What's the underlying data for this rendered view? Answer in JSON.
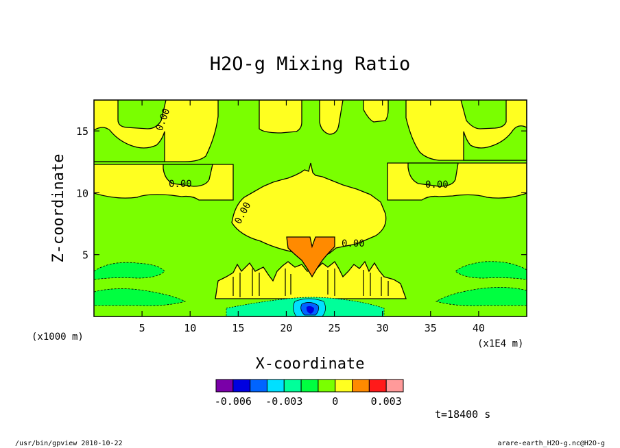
{
  "chart_data": {
    "type": "heatmap",
    "title": "H2O-g Mixing Ratio",
    "xlabel": "X-coordinate",
    "ylabel": "Z-coordinate",
    "x_unit": "(x1E4 m)",
    "z_unit": "(x1000 m)",
    "xlim": [
      0,
      45
    ],
    "ylim": [
      0,
      17.5
    ],
    "x_ticks": [
      5,
      10,
      15,
      20,
      25,
      30,
      35,
      40
    ],
    "y_ticks": [
      5,
      10,
      15
    ],
    "contour_labels": [
      "0.00",
      "0.00",
      "0.00",
      "0.00",
      "0.00"
    ],
    "colorbar": {
      "colors": [
        "#7a00a8",
        "#0000e0",
        "#0064ff",
        "#00e0ff",
        "#00ff9a",
        "#00ff40",
        "#7aff00",
        "#ffff20",
        "#ff8a00",
        "#ff1a1a",
        "#ff9a9a"
      ],
      "tick_labels": [
        "-0.006",
        "-0.003",
        "0",
        "0.003"
      ],
      "tick_values": [
        -0.006,
        -0.003,
        0,
        0.003
      ],
      "range": [
        -0.007,
        0.004
      ]
    },
    "time_label": "t=18400 s"
  },
  "footer": {
    "left": "/usr/bin/gpview  2010-10-22",
    "right": "arare-earth_H2O-g.nc@H2O-g"
  }
}
